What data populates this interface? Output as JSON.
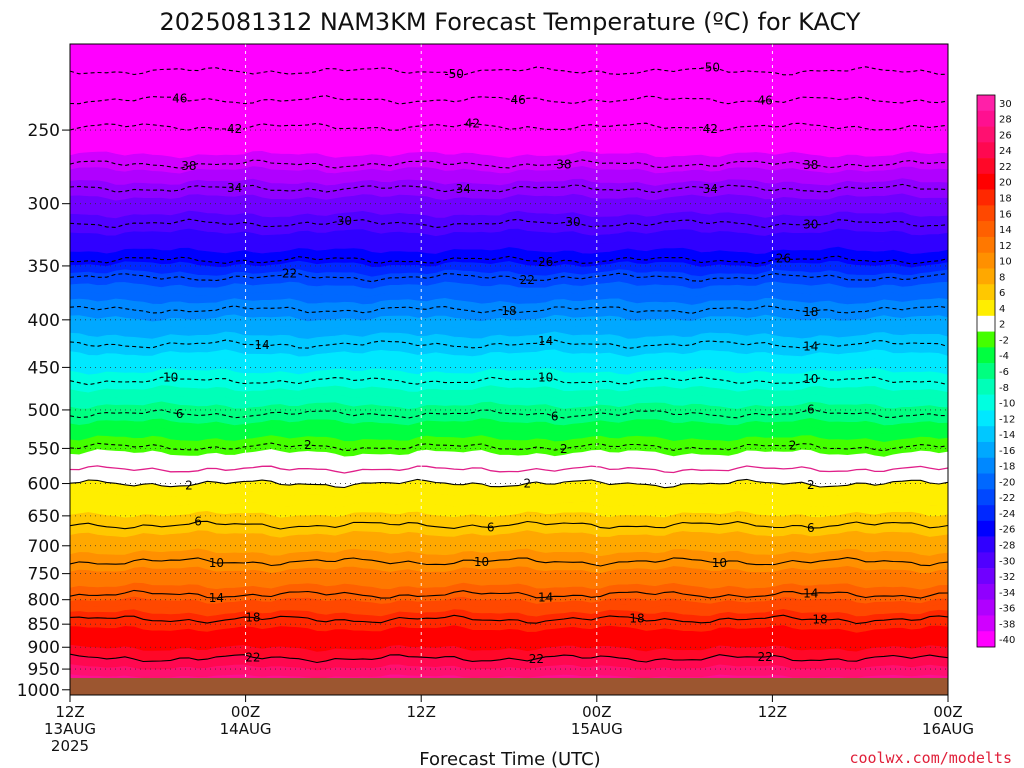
{
  "chart_data": {
    "type": "heatmap",
    "title": "2025081312 NAM3KM Forecast Temperature (ºC) for KACY",
    "xlabel": "Forecast Time (UTC)",
    "ylabel": "",
    "x_ticks": [
      {
        "hours": 0,
        "lines": [
          "12Z",
          "13AUG",
          "2025"
        ]
      },
      {
        "hours": 12,
        "lines": [
          "00Z",
          "14AUG"
        ]
      },
      {
        "hours": 24,
        "lines": [
          "12Z"
        ]
      },
      {
        "hours": 36,
        "lines": [
          "00Z",
          "15AUG"
        ]
      },
      {
        "hours": 48,
        "lines": [
          "12Z"
        ]
      },
      {
        "hours": 60,
        "lines": [
          "00Z",
          "16AUG"
        ]
      }
    ],
    "xlim_hours": [
      0,
      60
    ],
    "y_scale": "log",
    "y_ticks": [
      250,
      300,
      350,
      400,
      450,
      500,
      550,
      600,
      650,
      700,
      750,
      800,
      850,
      900,
      950,
      1000
    ],
    "ylim": [
      1013,
      202
    ],
    "colorbar": {
      "labels": [
        "30",
        "28",
        "26",
        "24",
        "22",
        "20",
        "18",
        "16",
        "14",
        "12",
        "10",
        "8",
        "6",
        "4",
        "2",
        "-2",
        "-4",
        "-6",
        "-8",
        "-10",
        "-12",
        "-14",
        "-16",
        "-18",
        "-20",
        "-22",
        "-24",
        "-26",
        "-28",
        "-30",
        "-32",
        "-34",
        "-36",
        "-38",
        "-40"
      ],
      "colors": [
        "#ff20a8",
        "#ff1090",
        "#ff1070",
        "#ff0850",
        "#ff0828",
        "#ff0000",
        "#ff2800",
        "#ff4800",
        "#ff6000",
        "#ff7800",
        "#ff9000",
        "#ffa800",
        "#ffc800",
        "#ffee00",
        "#ffffff",
        "#44ff00",
        "#00ff40",
        "#00ff80",
        "#00ffb8",
        "#00ffe0",
        "#00e8ff",
        "#00c8ff",
        "#00a8ff",
        "#0088ff",
        "#0068ff",
        "#0048ff",
        "#0028ff",
        "#0000ff",
        "#3000ff",
        "#5000ff",
        "#7000ff",
        "#9000ff",
        "#b000ff",
        "#d000ff",
        "#ff00ff"
      ]
    },
    "isotherms": [
      {
        "value": -50,
        "p_mean": 216,
        "labels": [
          {
            "hours": 26,
            "text": "-50"
          },
          {
            "hours": 44,
            "text": "-50"
          }
        ]
      },
      {
        "value": -46,
        "p_mean": 232,
        "labels": [
          {
            "hours": 7.3,
            "text": "46"
          },
          {
            "hours": 30.5,
            "text": "46"
          },
          {
            "hours": 47.6,
            "text": "46"
          }
        ]
      },
      {
        "value": -42,
        "p_mean": 248,
        "labels": [
          {
            "hours": 11,
            "text": "42"
          },
          {
            "hours": 27.5,
            "text": "42"
          },
          {
            "hours": 43.5,
            "text": "42"
          }
        ]
      },
      {
        "value": -38,
        "p_mean": 272,
        "labels": [
          {
            "hours": 8.3,
            "text": "38"
          },
          {
            "hours": 33.5,
            "text": "38"
          },
          {
            "hours": 50.5,
            "text": "38"
          }
        ]
      },
      {
        "value": -34,
        "p_mean": 289,
        "labels": [
          {
            "hours": 11.3,
            "text": "34"
          },
          {
            "hours": 27,
            "text": "34"
          },
          {
            "hours": 43.5,
            "text": "34"
          }
        ]
      },
      {
        "value": -30,
        "p_mean": 315,
        "labels": [
          {
            "hours": 18.5,
            "text": "30"
          },
          {
            "hours": 34.2,
            "text": "30"
          },
          {
            "hours": 50.5,
            "text": "30"
          }
        ]
      },
      {
        "value": -26,
        "p_mean": 345,
        "labels": [
          {
            "hours": 32.5,
            "text": "26"
          },
          {
            "hours": 49,
            "text": "26"
          }
        ]
      },
      {
        "value": -22,
        "p_mean": 360,
        "labels": [
          {
            "hours": 15.2,
            "text": "22"
          },
          {
            "hours": 31.3,
            "text": "22"
          }
        ]
      },
      {
        "value": -18,
        "p_mean": 390,
        "labels": [
          {
            "hours": 30,
            "text": "18"
          },
          {
            "hours": 50.5,
            "text": "18"
          }
        ]
      },
      {
        "value": -14,
        "p_mean": 425,
        "labels": [
          {
            "hours": 13,
            "text": "14"
          },
          {
            "hours": 32.2,
            "text": "14"
          },
          {
            "hours": 50.5,
            "text": "14"
          }
        ]
      },
      {
        "value": -10,
        "p_mean": 465,
        "labels": [
          {
            "hours": 7,
            "text": "10"
          },
          {
            "hours": 32.5,
            "text": "10"
          },
          {
            "hours": 50.5,
            "text": "10"
          }
        ]
      },
      {
        "value": -6,
        "p_mean": 505,
        "labels": [
          {
            "hours": 7.3,
            "text": "6"
          },
          {
            "hours": 33,
            "text": "6"
          },
          {
            "hours": 50.5,
            "text": "6"
          }
        ]
      },
      {
        "value": -2,
        "p_mean": 548,
        "labels": [
          {
            "hours": 16.5,
            "text": "2"
          },
          {
            "hours": 33.5,
            "text": "2"
          },
          {
            "hours": 49.5,
            "text": "2"
          }
        ]
      },
      {
        "value": 2,
        "p_mean": 600,
        "labels": [
          {
            "hours": 8.3,
            "text": "2"
          },
          {
            "hours": 31,
            "text": "2"
          },
          {
            "hours": 50.5,
            "text": "2"
          }
        ]
      },
      {
        "value": 6,
        "p_mean": 665,
        "labels": [
          {
            "hours": 8.8,
            "text": "6"
          },
          {
            "hours": 28.8,
            "text": "6"
          },
          {
            "hours": 50.5,
            "text": "6"
          }
        ]
      },
      {
        "value": 10,
        "p_mean": 728,
        "labels": [
          {
            "hours": 10,
            "text": "10"
          },
          {
            "hours": 28.3,
            "text": "10"
          },
          {
            "hours": 44.5,
            "text": "10"
          }
        ]
      },
      {
        "value": 14,
        "p_mean": 790,
        "labels": [
          {
            "hours": 10,
            "text": "14"
          },
          {
            "hours": 32.5,
            "text": "14"
          },
          {
            "hours": 50.5,
            "text": "14"
          }
        ]
      },
      {
        "value": 18,
        "p_mean": 840,
        "labels": [
          {
            "hours": 12.5,
            "text": "18"
          },
          {
            "hours": 38.5,
            "text": "18"
          },
          {
            "hours": 51.5,
            "text": "18"
          }
        ]
      },
      {
        "value": 22,
        "p_mean": 925,
        "labels": [
          {
            "hours": 12.5,
            "text": "22"
          },
          {
            "hours": 31.6,
            "text": "22"
          },
          {
            "hours": 47.5,
            "text": "22"
          }
        ]
      }
    ]
  },
  "credit": "coolwx.com/modelts"
}
